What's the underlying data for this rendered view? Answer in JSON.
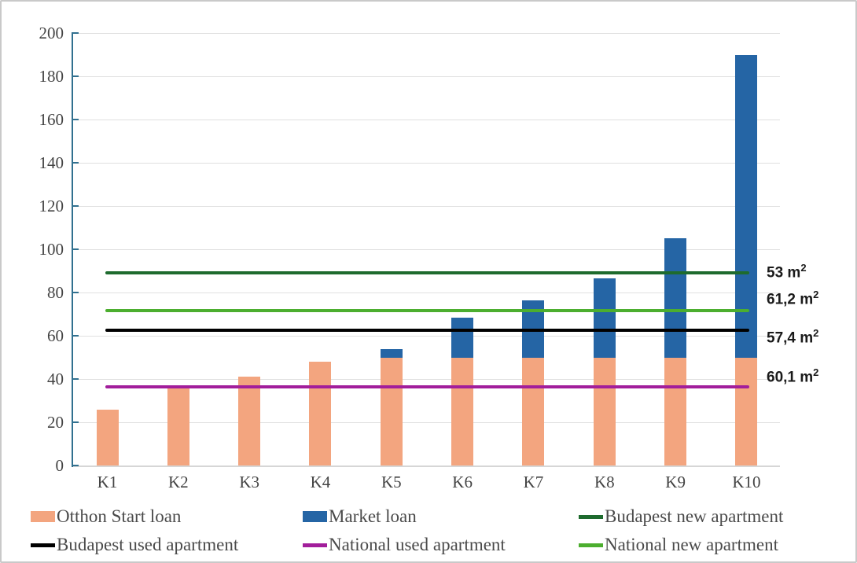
{
  "chart_data": {
    "type": "bar",
    "stacked": true,
    "title": "",
    "xlabel": "",
    "ylabel": "",
    "categories": [
      "K1",
      "K2",
      "K3",
      "K4",
      "K5",
      "K6",
      "K7",
      "K8",
      "K9",
      "K10"
    ],
    "series": [
      {
        "name": "Otthon Start loan",
        "color": "#F3A57F",
        "values": [
          26,
          36,
          41,
          48,
          50,
          50,
          50,
          50,
          50,
          50
        ]
      },
      {
        "name": "Market loan",
        "color": "#2565A5",
        "values": [
          0,
          0,
          0,
          0,
          4,
          18.5,
          26.5,
          36.5,
          55,
          140
        ]
      }
    ],
    "stack_totals": [
      26,
      36,
      41,
      48,
      54,
      68.5,
      76.5,
      86.5,
      105,
      190
    ],
    "reference_lines": [
      {
        "name": "Budapest new apartment",
        "color": "#1E6B2E",
        "value": 89,
        "annotation": {
          "text": "53 m",
          "sup": "2",
          "at_value": 90
        }
      },
      {
        "name": "National new apartment",
        "color": "#4CAE2F",
        "value": 71.8,
        "annotation": {
          "text": "61,2 m",
          "sup": "2",
          "at_value": 77.5
        }
      },
      {
        "name": "Budapest used apartment",
        "color": "#000000",
        "value": 62.6,
        "annotation": {
          "text": "57,4 m",
          "sup": "2",
          "at_value": 59.5
        }
      },
      {
        "name": "National used apartment",
        "color": "#A21E9B",
        "value": 36.4,
        "annotation": {
          "text": "60,1 m",
          "sup": "2",
          "at_value": 41.5
        }
      }
    ],
    "ylim": [
      0,
      200
    ],
    "yticks": [
      0,
      20,
      40,
      60,
      80,
      100,
      120,
      140,
      160,
      180,
      200
    ],
    "grid": true,
    "legend_position": "bottom"
  },
  "legend": {
    "rows": [
      [
        {
          "label": "Otthon Start loan",
          "swatch": "rect",
          "color": "#F3A57F"
        },
        {
          "label": "Market loan",
          "swatch": "rect",
          "color": "#2565A5"
        },
        {
          "label": "Budapest new apartment",
          "swatch": "line",
          "color": "#1E6B2E"
        }
      ],
      [
        {
          "label": "Budapest used apartment",
          "swatch": "line",
          "color": "#000000"
        },
        {
          "label": "National used apartment",
          "swatch": "line",
          "color": "#A21E9B"
        },
        {
          "label": "National new apartment",
          "swatch": "line",
          "color": "#4CAE2F"
        }
      ]
    ]
  },
  "colors": {
    "axis": "#31708F",
    "gridline": "#E0E0E0",
    "tick_text": "#444444",
    "legend_text": "#4A4A4A",
    "annotation_text": "#1A1A1A",
    "frame_border": "#C9C9C9",
    "background": "#FFFFFF"
  }
}
